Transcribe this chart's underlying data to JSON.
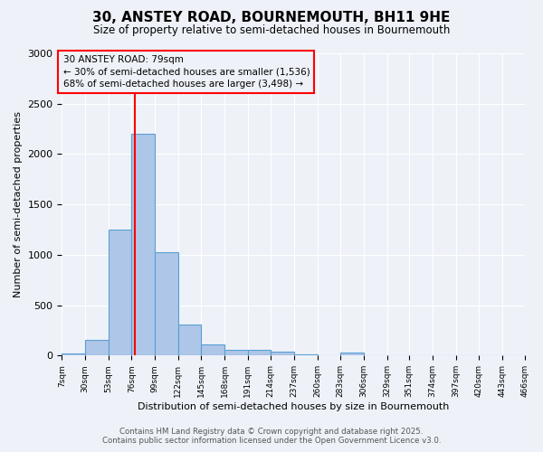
{
  "title": "30, ANSTEY ROAD, BOURNEMOUTH, BH11 9HE",
  "subtitle": "Size of property relative to semi-detached houses in Bournemouth",
  "xlabel": "Distribution of semi-detached houses by size in Bournemouth",
  "ylabel": "Number of semi-detached properties",
  "bin_edges": [
    7,
    30,
    53,
    76,
    99,
    122,
    145,
    168,
    191,
    214,
    237,
    260,
    283,
    306,
    329,
    351,
    374,
    397,
    420,
    443,
    466
  ],
  "bar_heights": [
    20,
    160,
    1250,
    2200,
    1030,
    310,
    110,
    60,
    55,
    40,
    15,
    0,
    30,
    0,
    0,
    0,
    0,
    0,
    0,
    0
  ],
  "bar_color": "#aec6e8",
  "bar_edge_color": "#5a9fd4",
  "red_line_x": 79,
  "ylim": [
    0,
    3000
  ],
  "yticks": [
    0,
    500,
    1000,
    1500,
    2000,
    2500,
    3000
  ],
  "annotation_title": "30 ANSTEY ROAD: 79sqm",
  "annotation_line1": "← 30% of semi-detached houses are smaller (1,536)",
  "annotation_line2": "68% of semi-detached houses are larger (3,498) →",
  "footer_line1": "Contains HM Land Registry data © Crown copyright and database right 2025.",
  "footer_line2": "Contains public sector information licensed under the Open Government Licence v3.0.",
  "bg_color": "#eef2f8",
  "grid_color": "#ffffff",
  "tick_labels": [
    "7sqm",
    "30sqm",
    "53sqm",
    "76sqm",
    "99sqm",
    "122sqm",
    "145sqm",
    "168sqm",
    "191sqm",
    "214sqm",
    "237sqm",
    "260sqm",
    "283sqm",
    "306sqm",
    "329sqm",
    "351sqm",
    "374sqm",
    "397sqm",
    "420sqm",
    "443sqm",
    "466sqm"
  ]
}
